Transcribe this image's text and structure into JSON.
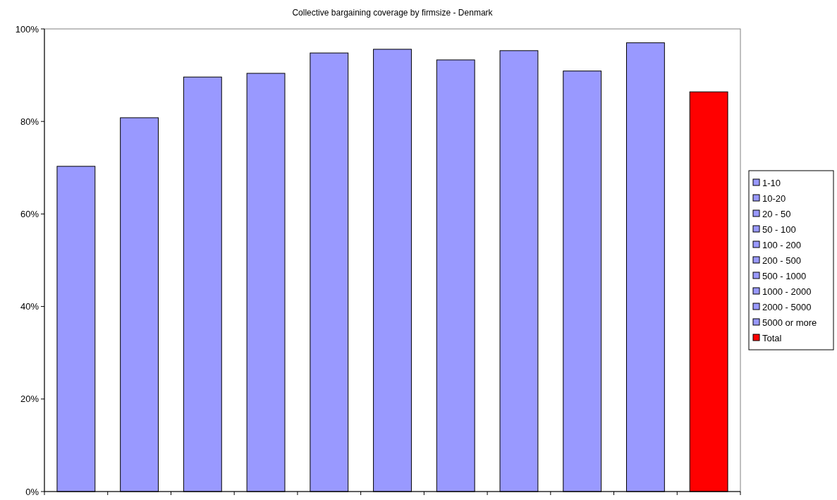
{
  "chart_data": {
    "type": "bar",
    "title": "Collective bargaining coverage by firmsize - Denmark",
    "categories": [
      null,
      null,
      null,
      null,
      null,
      null,
      null,
      null,
      null,
      null,
      null
    ],
    "series": [
      {
        "name": "1-10",
        "color": "#9999ff",
        "values": [
          70.3,
          null,
          null,
          null,
          null,
          null,
          null,
          null,
          null,
          null,
          null
        ]
      },
      {
        "name": "10-20",
        "color": "#9999ff",
        "values": [
          null,
          80.8,
          null,
          null,
          null,
          null,
          null,
          null,
          null,
          null,
          null
        ]
      },
      {
        "name": "20 - 50",
        "color": "#9999ff",
        "values": [
          null,
          null,
          89.6,
          null,
          null,
          null,
          null,
          null,
          null,
          null,
          null
        ]
      },
      {
        "name": "50 - 100",
        "color": "#9999ff",
        "values": [
          null,
          null,
          null,
          90.4,
          null,
          null,
          null,
          null,
          null,
          null,
          null
        ]
      },
      {
        "name": "100 - 200",
        "color": "#9999ff",
        "values": [
          null,
          null,
          null,
          null,
          94.8,
          null,
          null,
          null,
          null,
          null,
          null
        ]
      },
      {
        "name": "200 - 500",
        "color": "#9999ff",
        "values": [
          null,
          null,
          null,
          null,
          null,
          95.6,
          null,
          null,
          null,
          null,
          null
        ]
      },
      {
        "name": "500 - 1000",
        "color": "#9999ff",
        "values": [
          null,
          null,
          null,
          null,
          null,
          null,
          93.3,
          null,
          null,
          null,
          null
        ]
      },
      {
        "name": "1000 - 2000",
        "color": "#9999ff",
        "values": [
          null,
          null,
          null,
          null,
          null,
          null,
          null,
          95.3,
          null,
          null,
          null
        ]
      },
      {
        "name": "2000 - 5000",
        "color": "#9999ff",
        "values": [
          null,
          null,
          null,
          null,
          null,
          null,
          null,
          null,
          90.9,
          null,
          null
        ]
      },
      {
        "name": "5000 or more",
        "color": "#9999ff",
        "values": [
          null,
          null,
          null,
          null,
          null,
          null,
          null,
          null,
          null,
          97.0,
          null
        ]
      },
      {
        "name": "Total",
        "color": "#ff0000",
        "values": [
          null,
          null,
          null,
          null,
          null,
          null,
          null,
          null,
          null,
          null,
          86.4
        ]
      }
    ],
    "ylim": [
      0,
      100
    ],
    "yticks": [
      {
        "value": 0,
        "label": "0%"
      },
      {
        "value": 20,
        "label": "20%"
      },
      {
        "value": 40,
        "label": "40%"
      },
      {
        "value": 60,
        "label": "60%"
      },
      {
        "value": 80,
        "label": "80%"
      },
      {
        "value": 100,
        "label": "100%"
      }
    ],
    "grid": false,
    "legend": "right"
  }
}
